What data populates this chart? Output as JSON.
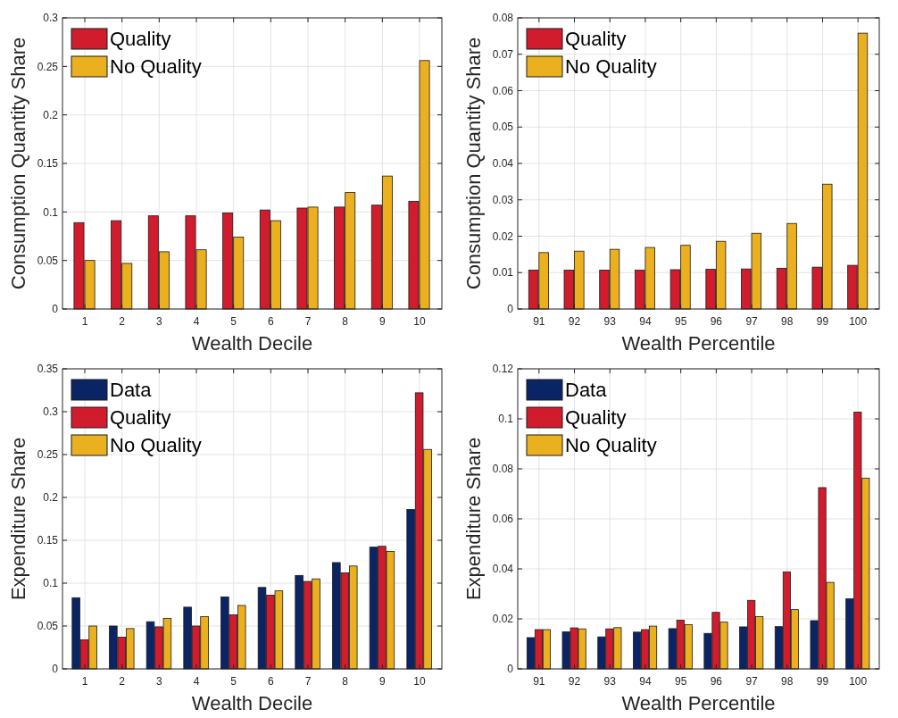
{
  "chart_data": [
    {
      "type": "bar",
      "xlabel": "Wealth Decile",
      "ylabel": "Consumption Quantity Share",
      "categories": [
        "1",
        "2",
        "3",
        "4",
        "5",
        "6",
        "7",
        "8",
        "9",
        "10"
      ],
      "series": [
        {
          "name": "Quality",
          "color": "#d01c2d",
          "values": [
            0.089,
            0.091,
            0.096,
            0.096,
            0.099,
            0.102,
            0.104,
            0.105,
            0.107,
            0.111
          ]
        },
        {
          "name": "No Quality",
          "color": "#ebb01f",
          "values": [
            0.05,
            0.047,
            0.059,
            0.061,
            0.074,
            0.091,
            0.105,
            0.12,
            0.137,
            0.256
          ]
        }
      ],
      "ylim": [
        0,
        0.3
      ],
      "yticks": [
        0,
        0.05,
        0.1,
        0.15,
        0.2,
        0.25,
        0.3
      ],
      "grid": true,
      "legend": "top left"
    },
    {
      "type": "bar",
      "xlabel": "Wealth Percentile",
      "ylabel": "Consumption Quantity Share",
      "categories": [
        "91",
        "92",
        "93",
        "94",
        "95",
        "96",
        "97",
        "98",
        "99",
        "100"
      ],
      "series": [
        {
          "name": "Quality",
          "color": "#d01c2d",
          "values": [
            0.0107,
            0.0107,
            0.0107,
            0.0107,
            0.0108,
            0.0109,
            0.011,
            0.0112,
            0.0115,
            0.012
          ]
        },
        {
          "name": "No Quality",
          "color": "#ebb01f",
          "values": [
            0.0155,
            0.0159,
            0.0164,
            0.0169,
            0.0175,
            0.0186,
            0.0208,
            0.0235,
            0.0343,
            0.0758
          ]
        }
      ],
      "ylim": [
        0,
        0.08
      ],
      "yticks": [
        0,
        0.01,
        0.02,
        0.03,
        0.04,
        0.05,
        0.06,
        0.07,
        0.08
      ],
      "grid": true,
      "legend": "top left"
    },
    {
      "type": "bar",
      "xlabel": "Wealth Decile",
      "ylabel": "Expenditure Share",
      "categories": [
        "1",
        "2",
        "3",
        "4",
        "5",
        "6",
        "7",
        "8",
        "9",
        "10"
      ],
      "series": [
        {
          "name": "Data",
          "color": "#0b2466",
          "values": [
            0.083,
            0.05,
            0.055,
            0.072,
            0.084,
            0.095,
            0.109,
            0.124,
            0.142,
            0.186
          ]
        },
        {
          "name": "Quality",
          "color": "#d01c2d",
          "values": [
            0.034,
            0.037,
            0.049,
            0.05,
            0.063,
            0.086,
            0.102,
            0.112,
            0.143,
            0.322
          ]
        },
        {
          "name": "No Quality",
          "color": "#ebb01f",
          "values": [
            0.05,
            0.047,
            0.059,
            0.061,
            0.074,
            0.091,
            0.105,
            0.12,
            0.137,
            0.256
          ]
        }
      ],
      "ylim": [
        0,
        0.35
      ],
      "yticks": [
        0,
        0.05,
        0.1,
        0.15,
        0.2,
        0.25,
        0.3,
        0.35
      ],
      "grid": true,
      "legend": "top left"
    },
    {
      "type": "bar",
      "xlabel": "Wealth Percentile",
      "ylabel": "Expenditure Share",
      "categories": [
        "91",
        "92",
        "93",
        "94",
        "95",
        "96",
        "97",
        "98",
        "99",
        "100"
      ],
      "series": [
        {
          "name": "Data",
          "color": "#0b2466",
          "values": [
            0.0125,
            0.0148,
            0.0128,
            0.0147,
            0.0161,
            0.0142,
            0.0168,
            0.0169,
            0.0193,
            0.028
          ]
        },
        {
          "name": "Quality",
          "color": "#d01c2d",
          "values": [
            0.0157,
            0.0164,
            0.016,
            0.0157,
            0.0195,
            0.0226,
            0.0274,
            0.0388,
            0.0725,
            0.1027
          ]
        },
        {
          "name": "No Quality",
          "color": "#ebb01f",
          "values": [
            0.0157,
            0.016,
            0.0165,
            0.0171,
            0.0177,
            0.0187,
            0.0209,
            0.0237,
            0.0346,
            0.0763
          ]
        }
      ],
      "ylim": [
        0,
        0.12
      ],
      "yticks": [
        0,
        0.02,
        0.04,
        0.06,
        0.08,
        0.1,
        0.12
      ],
      "grid": true,
      "legend": "top left"
    }
  ]
}
